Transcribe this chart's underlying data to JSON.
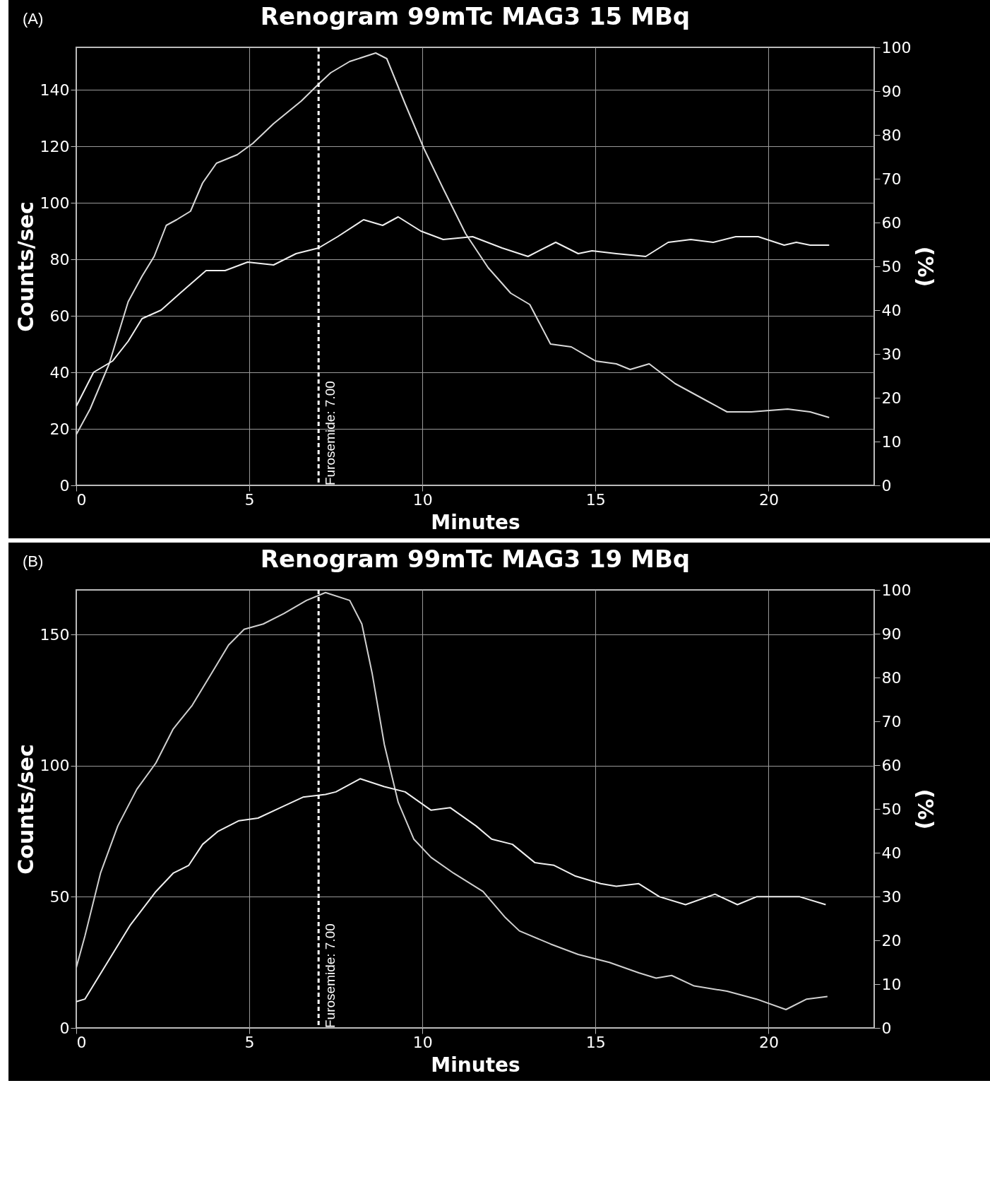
{
  "chart_data": [
    {
      "type": "line",
      "title": "Renogram 99mTc MAG3 15 MBq",
      "xlabel": "Minutes",
      "ylabel": "Counts/sec",
      "y2label": "(%)",
      "annotations": [
        "(A)"
      ],
      "xlim": [
        0,
        23.05
      ],
      "xticks": [
        0,
        5,
        10,
        15,
        20
      ],
      "ylim": [
        0,
        155
      ],
      "yticks": [
        0,
        20,
        40,
        60,
        80,
        100,
        120,
        140
      ],
      "y2lim": [
        0,
        100
      ],
      "y2ticks": [
        0,
        10,
        20,
        30,
        40,
        50,
        60,
        70,
        80,
        90,
        100
      ],
      "grid": true,
      "ref_lines": [
        {
          "axis": "x",
          "value": 7,
          "label": "Furosemide: 7.00",
          "color": "#ffffff",
          "line_style": "dashed"
        }
      ],
      "series": [
        {
          "color": "#d9d9d9",
          "x": [
            0,
            0.4,
            0.95,
            1.5,
            1.9,
            2.25,
            2.6,
            2.9,
            3.3,
            3.65,
            4.05,
            4.65,
            5.1,
            5.7,
            6.5,
            7.0,
            7.35,
            7.9,
            8.65,
            8.97,
            9.5,
            10.05,
            10.6,
            11.25,
            11.9,
            12.55,
            13.1,
            13.7,
            14.3,
            15.0,
            15.6,
            16.0,
            16.55,
            17.3,
            18.2,
            18.8,
            19.5,
            20.55,
            21.2,
            21.75
          ],
          "values": [
            18,
            27,
            43,
            65,
            74,
            81,
            92,
            94,
            97,
            107,
            114,
            117,
            121,
            128,
            136,
            142,
            146,
            150,
            153,
            151,
            135,
            119,
            105,
            89,
            77,
            68,
            64,
            50,
            49,
            44,
            43,
            41,
            43,
            36,
            30,
            26,
            26,
            27,
            26,
            24
          ]
        },
        {
          "color": "#f0f0f0",
          "x": [
            0,
            0.5,
            1.05,
            1.5,
            1.9,
            2.45,
            3.0,
            3.75,
            4.3,
            4.95,
            5.7,
            6.35,
            7.0,
            7.55,
            8.3,
            8.85,
            9.3,
            9.95,
            10.6,
            11.45,
            12.3,
            13.05,
            13.85,
            14.5,
            14.9,
            15.6,
            16.45,
            17.1,
            17.75,
            18.4,
            19.05,
            19.7,
            20.45,
            20.8,
            21.2,
            21.75
          ],
          "values": [
            28,
            40,
            44,
            51,
            59,
            62,
            68,
            76,
            76,
            79,
            78,
            82,
            84,
            88,
            94,
            92,
            95,
            90,
            87,
            88,
            84,
            81,
            86,
            82,
            83,
            82,
            81,
            86,
            87,
            86,
            88,
            88,
            85,
            86,
            85,
            85
          ]
        }
      ]
    },
    {
      "type": "line",
      "title": "Renogram 99mTc MAG3 19 MBq",
      "xlabel": "Minutes",
      "ylabel": "Counts/sec",
      "y2label": "(%)",
      "annotations": [
        "(B)"
      ],
      "xlim": [
        0,
        23.05
      ],
      "xticks": [
        0,
        5,
        10,
        15,
        20
      ],
      "ylim": [
        0,
        167
      ],
      "yticks": [
        0,
        50,
        100,
        150
      ],
      "y2lim": [
        0,
        100
      ],
      "y2ticks": [
        0,
        10,
        20,
        30,
        40,
        50,
        60,
        70,
        80,
        90,
        100
      ],
      "grid": true,
      "ref_lines": [
        {
          "axis": "x",
          "value": 7,
          "label": "Furosemide: 7.00",
          "color": "#ffffff",
          "line_style": "dashed"
        }
      ],
      "series": [
        {
          "color": "#d0d0d0",
          "x": [
            0,
            0.25,
            0.7,
            1.2,
            1.75,
            2.3,
            2.8,
            3.35,
            3.9,
            4.4,
            4.85,
            5.4,
            6.0,
            6.65,
            7.2,
            7.9,
            8.25,
            8.55,
            8.9,
            9.3,
            9.75,
            10.25,
            10.9,
            11.75,
            12.4,
            12.8,
            13.7,
            14.5,
            15.4,
            16.25,
            16.75,
            17.2,
            17.85,
            18.8,
            19.65,
            20.5,
            21.1,
            21.7
          ],
          "values": [
            23,
            35,
            59,
            77,
            91,
            101,
            114,
            123,
            135,
            146,
            152,
            154,
            158,
            163,
            166,
            163,
            154,
            135,
            108,
            86,
            72,
            65,
            59,
            52,
            42,
            37,
            32,
            28,
            25,
            21,
            19,
            20,
            16,
            14,
            11,
            7,
            11,
            12
          ]
        },
        {
          "color": "#f0f0f0",
          "x": [
            0,
            0.25,
            0.9,
            1.55,
            2.3,
            2.8,
            3.25,
            3.65,
            4.1,
            4.7,
            5.25,
            5.9,
            6.55,
            7.2,
            7.5,
            8.2,
            8.9,
            9.5,
            10.25,
            10.8,
            11.55,
            12.0,
            12.6,
            13.25,
            13.8,
            14.4,
            15.15,
            15.6,
            16.25,
            16.85,
            17.6,
            18.45,
            19.1,
            19.65,
            20.9,
            21.65
          ],
          "values": [
            10,
            11,
            25,
            39,
            52,
            59,
            62,
            70,
            75,
            79,
            80,
            84,
            88,
            89,
            90,
            95,
            92,
            90,
            83,
            84,
            77,
            72,
            70,
            63,
            62,
            58,
            55,
            54,
            55,
            50,
            47,
            51,
            47,
            50,
            50,
            47
          ]
        }
      ]
    }
  ]
}
